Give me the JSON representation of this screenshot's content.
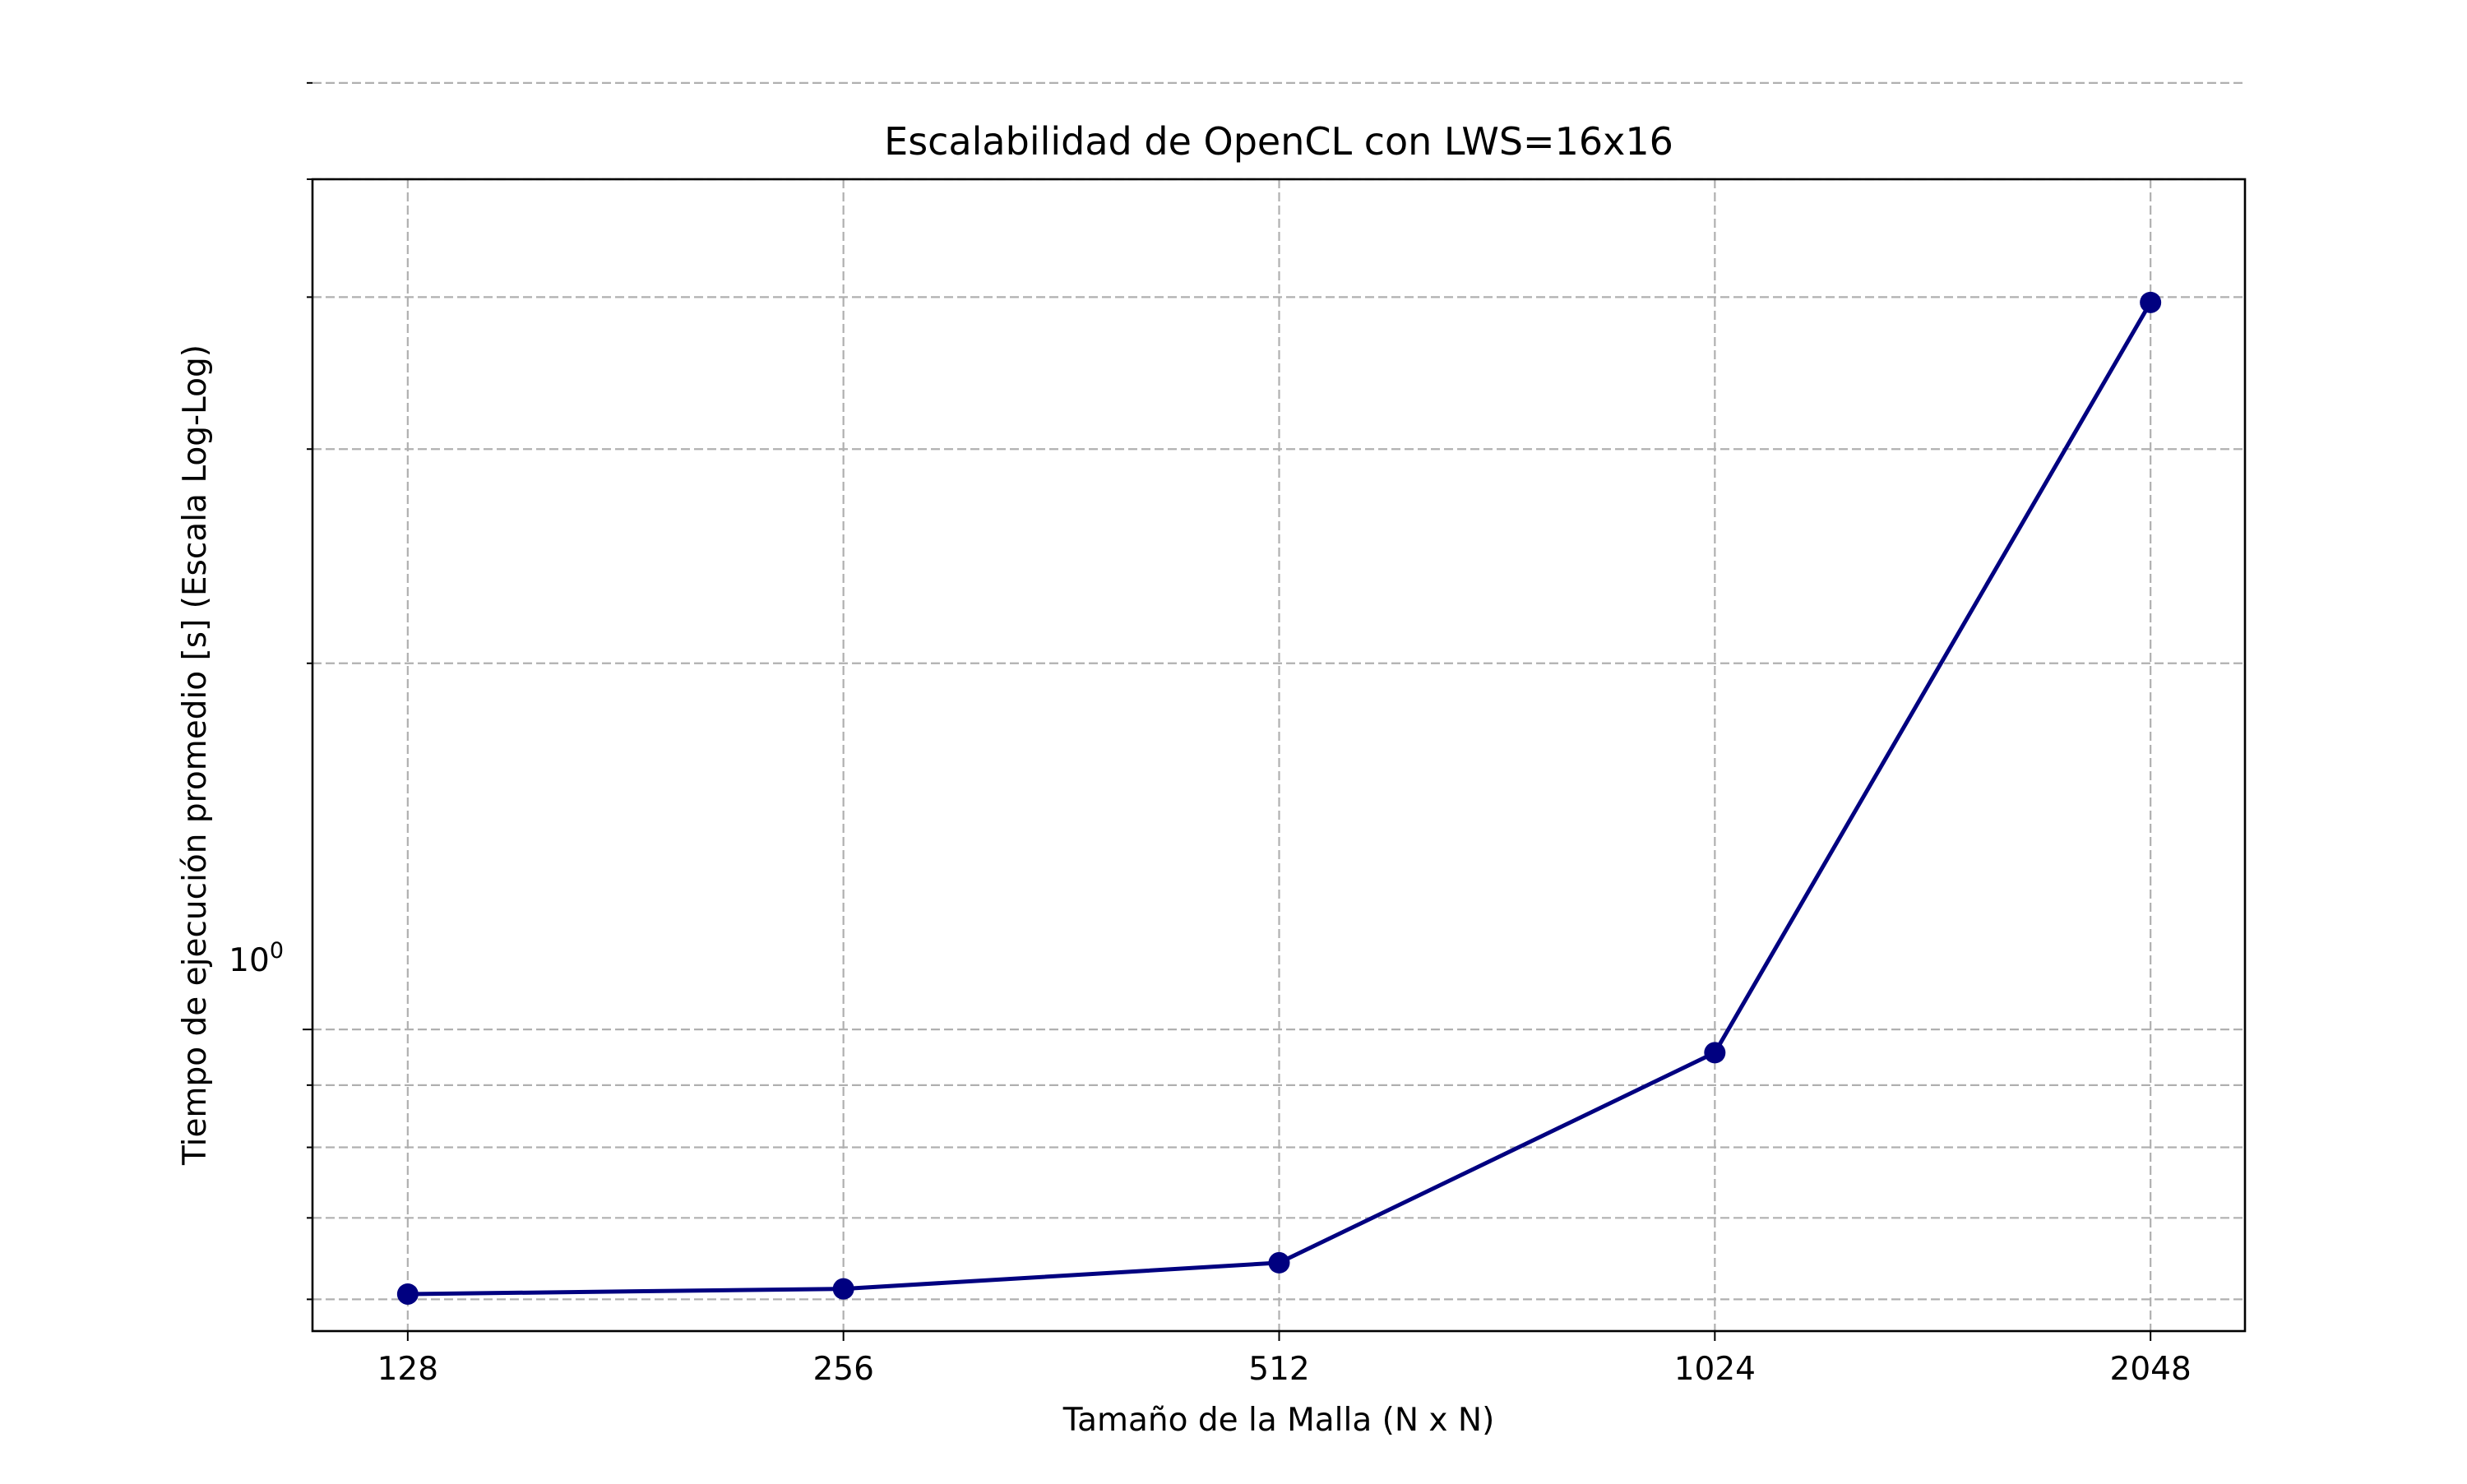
{
  "chart_data": {
    "type": "line",
    "title": "Escalabilidad de OpenCL con LWS=16x16",
    "xlabel": "Tamaño de la Malla (N x N)",
    "ylabel": "Tiempo de ejecución promedio [s] (Escala Log-Log)",
    "x_scale": "log2",
    "y_scale": "log",
    "categories": [
      "128",
      "256",
      "512",
      "1024",
      "2048"
    ],
    "x": [
      128,
      256,
      512,
      1024,
      2048
    ],
    "series": [
      {
        "values": [
          0.606,
          0.612,
          0.643,
          0.957,
          3.96
        ],
        "color": "#000080",
        "marker": "circle"
      }
    ],
    "y_tick_major": {
      "value": 1.0,
      "base": "10",
      "exponent": "0"
    },
    "y_tick_minor": [
      0.6,
      0.7,
      0.8,
      0.9,
      2,
      3,
      4,
      5,
      6
    ],
    "ylim": [
      0.565,
      5.0
    ],
    "xlim": [
      110,
      2380
    ],
    "grid": true,
    "legend": "none"
  }
}
